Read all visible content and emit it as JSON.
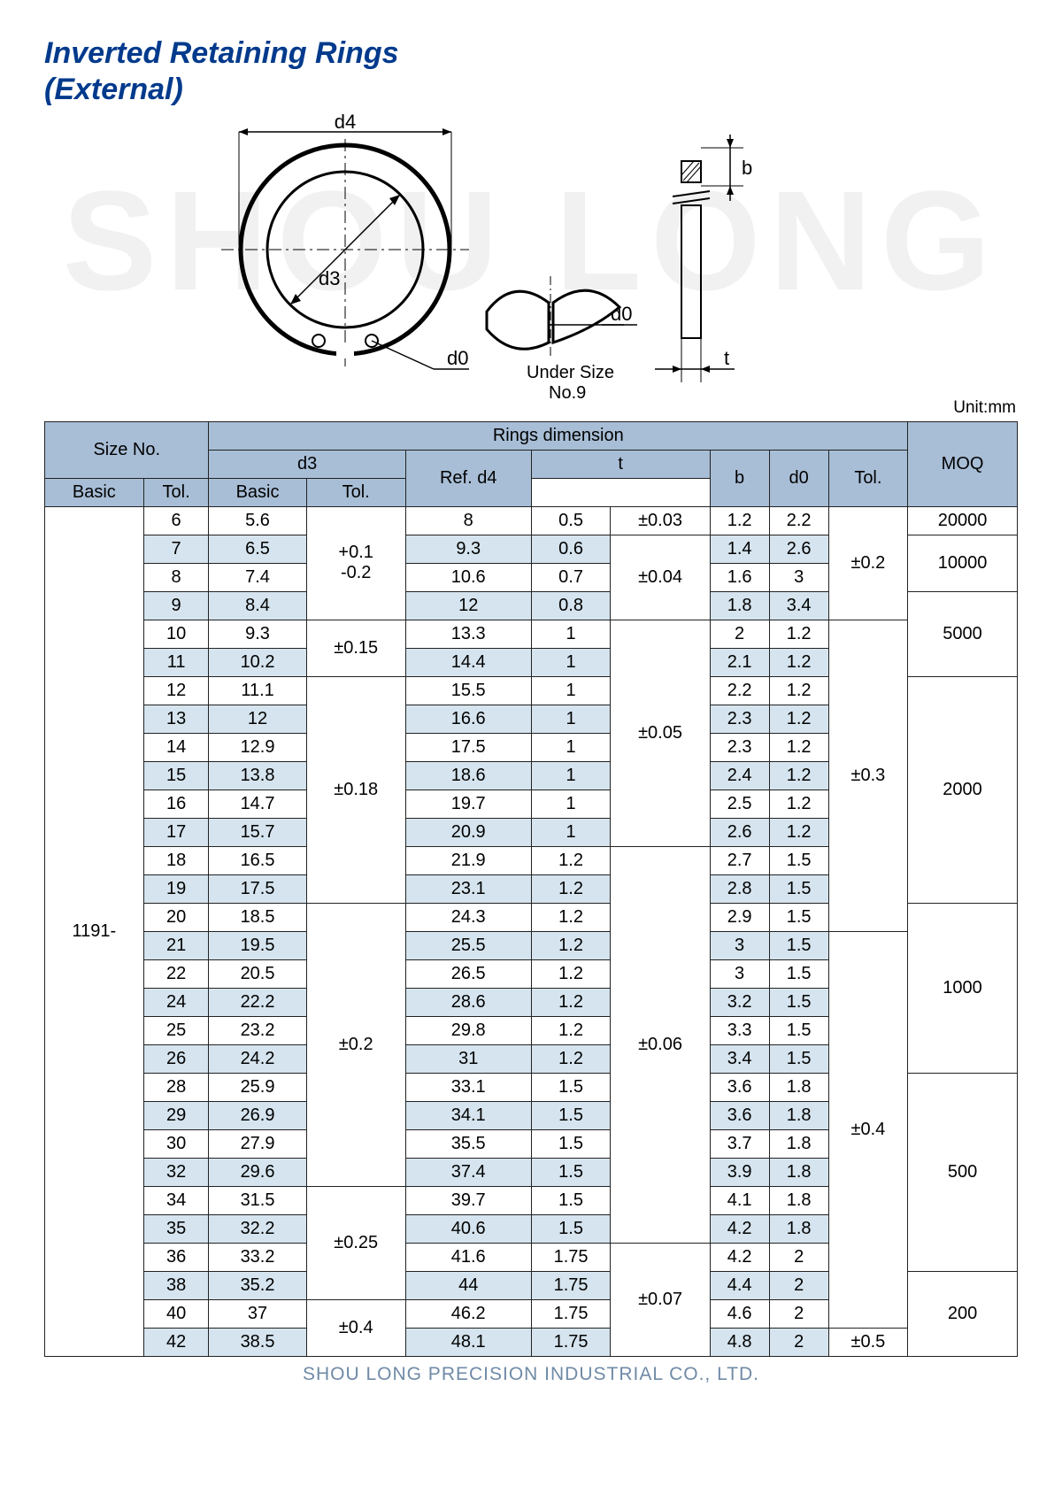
{
  "watermark": "SHOU LONG",
  "title_line1": "Inverted Retaining Rings",
  "title_line2": "(External)",
  "diagram": {
    "d4": "d4",
    "d3": "d3",
    "d0a": "d0",
    "d0b": "d0",
    "b": "b",
    "t": "t",
    "under": "Under Size",
    "no9": "No.9"
  },
  "unit_label": "Unit:mm",
  "headers": {
    "size_no": "Size No.",
    "rings_dim": "Rings dimension",
    "moq": "MOQ",
    "d3": "d3",
    "ref_d4": "Ref. d4",
    "t": "t",
    "b": "b",
    "d0": "d0",
    "tol": "Tol.",
    "basic": "Basic"
  },
  "prefix": "1191-",
  "rows": [
    {
      "n": "6",
      "d3": "5.6",
      "d4": "8",
      "tb": "0.5",
      "ttol": "±0.03",
      "b": "1.2",
      "d0": "2.2"
    },
    {
      "n": "7",
      "d3": "6.5",
      "d4": "9.3",
      "tb": "0.6",
      "b": "1.4",
      "d0": "2.6"
    },
    {
      "n": "8",
      "d3": "7.4",
      "d4": "10.6",
      "tb": "0.7",
      "b": "1.6",
      "d0": "3"
    },
    {
      "n": "9",
      "d3": "8.4",
      "d4": "12",
      "tb": "0.8",
      "b": "1.8",
      "d0": "3.4"
    },
    {
      "n": "10",
      "d3": "9.3",
      "d4": "13.3",
      "tb": "1",
      "b": "2",
      "d0": "1.2"
    },
    {
      "n": "11",
      "d3": "10.2",
      "d4": "14.4",
      "tb": "1",
      "b": "2.1",
      "d0": "1.2"
    },
    {
      "n": "12",
      "d3": "11.1",
      "d4": "15.5",
      "tb": "1",
      "b": "2.2",
      "d0": "1.2"
    },
    {
      "n": "13",
      "d3": "12",
      "d4": "16.6",
      "tb": "1",
      "b": "2.3",
      "d0": "1.2"
    },
    {
      "n": "14",
      "d3": "12.9",
      "d4": "17.5",
      "tb": "1",
      "b": "2.3",
      "d0": "1.2"
    },
    {
      "n": "15",
      "d3": "13.8",
      "d4": "18.6",
      "tb": "1",
      "b": "2.4",
      "d0": "1.2"
    },
    {
      "n": "16",
      "d3": "14.7",
      "d4": "19.7",
      "tb": "1",
      "b": "2.5",
      "d0": "1.2"
    },
    {
      "n": "17",
      "d3": "15.7",
      "d4": "20.9",
      "tb": "1",
      "b": "2.6",
      "d0": "1.2"
    },
    {
      "n": "18",
      "d3": "16.5",
      "d4": "21.9",
      "tb": "1.2",
      "b": "2.7",
      "d0": "1.5"
    },
    {
      "n": "19",
      "d3": "17.5",
      "d4": "23.1",
      "tb": "1.2",
      "b": "2.8",
      "d0": "1.5"
    },
    {
      "n": "20",
      "d3": "18.5",
      "d4": "24.3",
      "tb": "1.2",
      "b": "2.9",
      "d0": "1.5"
    },
    {
      "n": "21",
      "d3": "19.5",
      "d4": "25.5",
      "tb": "1.2",
      "b": "3",
      "d0": "1.5"
    },
    {
      "n": "22",
      "d3": "20.5",
      "d4": "26.5",
      "tb": "1.2",
      "b": "3",
      "d0": "1.5"
    },
    {
      "n": "24",
      "d3": "22.2",
      "d4": "28.6",
      "tb": "1.2",
      "b": "3.2",
      "d0": "1.5"
    },
    {
      "n": "25",
      "d3": "23.2",
      "d4": "29.8",
      "tb": "1.2",
      "b": "3.3",
      "d0": "1.5"
    },
    {
      "n": "26",
      "d3": "24.2",
      "d4": "31",
      "tb": "1.2",
      "b": "3.4",
      "d0": "1.5"
    },
    {
      "n": "28",
      "d3": "25.9",
      "d4": "33.1",
      "tb": "1.5",
      "b": "3.6",
      "d0": "1.8"
    },
    {
      "n": "29",
      "d3": "26.9",
      "d4": "34.1",
      "tb": "1.5",
      "b": "3.6",
      "d0": "1.8"
    },
    {
      "n": "30",
      "d3": "27.9",
      "d4": "35.5",
      "tb": "1.5",
      "b": "3.7",
      "d0": "1.8"
    },
    {
      "n": "32",
      "d3": "29.6",
      "d4": "37.4",
      "tb": "1.5",
      "b": "3.9",
      "d0": "1.8"
    },
    {
      "n": "34",
      "d3": "31.5",
      "d4": "39.7",
      "tb": "1.5",
      "b": "4.1",
      "d0": "1.8"
    },
    {
      "n": "35",
      "d3": "32.2",
      "d4": "40.6",
      "tb": "1.5",
      "b": "4.2",
      "d0": "1.8"
    },
    {
      "n": "36",
      "d3": "33.2",
      "d4": "41.6",
      "tb": "1.75",
      "b": "4.2",
      "d0": "2"
    },
    {
      "n": "38",
      "d3": "35.2",
      "d4": "44",
      "tb": "1.75",
      "b": "4.4",
      "d0": "2"
    },
    {
      "n": "40",
      "d3": "37",
      "d4": "46.2",
      "tb": "1.75",
      "b": "4.6",
      "d0": "2"
    },
    {
      "n": "42",
      "d3": "38.5",
      "d4": "48.1",
      "tb": "1.75",
      "b": "4.8",
      "d0": "2"
    }
  ],
  "d3tol": {
    "a": "+0.1\n-0.2",
    "b": "±0.15",
    "c": "±0.18",
    "d": "±0.2",
    "e": "±0.25",
    "f": "±0.4"
  },
  "ttol": {
    "a": "±0.03",
    "b": "±0.04",
    "c": "±0.05",
    "d": "±0.06",
    "e": "±0.07"
  },
  "gtol": {
    "a": "±0.2",
    "b": "±0.3",
    "c": "±0.4",
    "d": "±0.5"
  },
  "moq": {
    "a": "20000",
    "b": "10000",
    "c": "5000",
    "d": "2000",
    "e": "1000",
    "f": "500",
    "g": "200"
  },
  "footer": "SHOU LONG PRECISION INDUSTRIAL CO., LTD."
}
